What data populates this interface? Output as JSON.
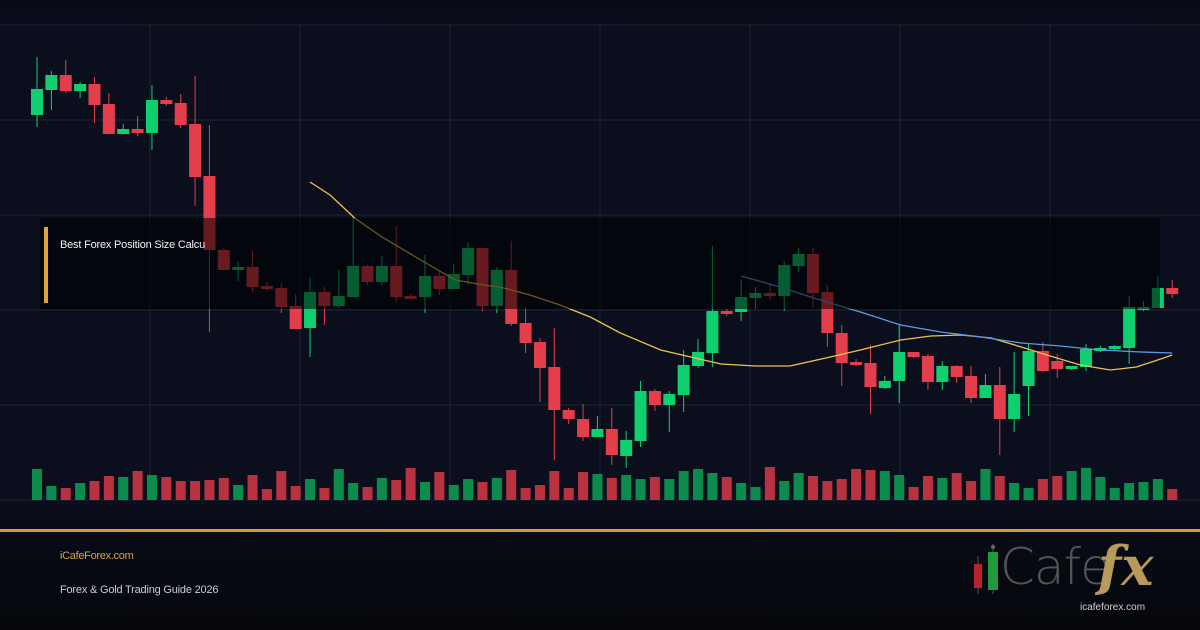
{
  "banner": {
    "title": "Best Forex Position Size Calcu",
    "site": "iCafeForex.com",
    "subtitle": "Forex & Gold Trading Guide 2026",
    "logo_text": "iCafefx",
    "logo_url": "icafeforex.com"
  },
  "colors": {
    "bull": "#0fcf6e",
    "bear": "#e43d4b",
    "bull_volume": "#0c8c4c",
    "bear_volume": "#b8323f",
    "ma_fast": "#f2c14e",
    "ma_slow": "#5b9be6",
    "accent": "#d49a3a",
    "grid": "#1e2436"
  },
  "chart_data": {
    "type": "candlestick",
    "grid": true,
    "candles": [
      [
        385,
        443,
        373,
        411
      ],
      [
        410,
        429,
        390,
        425
      ],
      [
        425,
        440,
        407,
        409
      ],
      [
        409,
        418,
        402,
        416
      ],
      [
        416,
        423,
        377,
        395
      ],
      [
        396,
        407,
        366,
        366
      ],
      [
        366,
        376,
        366,
        371
      ],
      [
        371,
        384,
        364,
        367
      ],
      [
        367,
        415,
        350,
        400
      ],
      [
        400,
        403,
        394,
        396
      ],
      [
        397,
        406,
        372,
        375
      ],
      [
        376,
        424,
        294,
        323
      ],
      [
        324,
        375,
        168,
        250
      ],
      [
        250,
        252,
        230,
        230
      ],
      [
        230,
        238,
        219,
        233
      ],
      [
        233,
        249,
        208,
        213
      ],
      [
        214,
        218,
        209,
        211
      ],
      [
        212,
        217,
        187,
        193
      ],
      [
        194,
        206,
        171,
        171
      ],
      [
        172,
        222,
        143,
        208
      ],
      [
        208,
        213,
        175,
        194
      ],
      [
        194,
        230,
        192,
        204
      ],
      [
        203,
        283,
        203,
        234
      ],
      [
        234,
        235,
        215,
        218
      ],
      [
        218,
        244,
        215,
        234
      ],
      [
        234,
        274,
        198,
        203
      ],
      [
        204,
        206,
        201,
        201
      ],
      [
        203,
        245,
        187,
        224
      ],
      [
        224,
        229,
        205,
        211
      ],
      [
        211,
        236,
        211,
        226
      ],
      [
        225,
        258,
        215,
        252
      ],
      [
        252,
        252,
        189,
        194
      ],
      [
        194,
        233,
        187,
        230
      ],
      [
        230,
        259,
        174,
        176
      ],
      [
        177,
        193,
        147,
        157
      ],
      [
        158,
        162,
        98,
        132
      ],
      [
        133,
        172,
        40,
        90
      ],
      [
        90,
        92,
        76,
        81
      ],
      [
        81,
        96,
        59,
        63
      ],
      [
        63,
        84,
        63,
        71
      ],
      [
        71,
        92,
        35,
        45
      ],
      [
        44,
        69,
        32,
        60
      ],
      [
        59,
        119,
        53,
        109
      ],
      [
        109,
        111,
        89,
        95
      ],
      [
        95,
        109,
        68,
        106
      ],
      [
        105,
        150,
        88,
        135
      ],
      [
        134,
        161,
        132,
        148
      ],
      [
        147,
        254,
        133,
        189
      ],
      [
        189,
        191,
        184,
        186
      ],
      [
        188,
        220,
        179,
        203
      ],
      [
        202,
        213,
        191,
        207
      ],
      [
        207,
        216,
        200,
        204
      ],
      [
        204,
        239,
        189,
        235
      ],
      [
        234,
        252,
        228,
        246
      ],
      [
        246,
        252,
        193,
        207
      ],
      [
        208,
        215,
        153,
        167
      ],
      [
        167,
        175,
        114,
        137
      ],
      [
        138,
        141,
        134,
        135
      ],
      [
        137,
        155,
        86,
        113
      ],
      [
        112,
        124,
        111,
        119
      ],
      [
        119,
        175,
        97,
        148
      ],
      [
        148,
        148,
        142,
        143
      ],
      [
        144,
        146,
        110,
        118
      ],
      [
        118,
        139,
        110,
        134
      ],
      [
        134,
        135,
        117,
        123
      ],
      [
        124,
        134,
        97,
        102
      ],
      [
        102,
        126,
        102,
        115
      ],
      [
        115,
        133,
        45,
        81
      ],
      [
        81,
        148,
        68,
        106
      ],
      [
        114,
        157,
        84,
        149
      ],
      [
        149,
        158,
        128,
        129
      ],
      [
        139,
        146,
        122,
        131
      ],
      [
        131,
        134,
        130,
        134
      ],
      [
        133,
        156,
        129,
        151
      ],
      [
        149,
        154,
        148,
        152
      ],
      [
        151,
        155,
        150,
        154
      ],
      [
        152,
        204,
        136,
        193
      ],
      [
        190,
        199,
        189,
        193
      ],
      [
        192,
        224,
        192,
        212
      ],
      [
        212,
        220,
        202,
        206
      ]
    ],
    "volumes": [
      31,
      14,
      12,
      17,
      19,
      24,
      23,
      29,
      25,
      23,
      19,
      19,
      20,
      22,
      15,
      25,
      11,
      29,
      14,
      21,
      12,
      31,
      17,
      13,
      22,
      20,
      32,
      18,
      28,
      15,
      21,
      18,
      22,
      30,
      12,
      15,
      29,
      12,
      28,
      26,
      22,
      25,
      21,
      23,
      21,
      29,
      31,
      27,
      23,
      17,
      13,
      33,
      19,
      27,
      24,
      19,
      21,
      31,
      30,
      29,
      25,
      13,
      24,
      22,
      27,
      19,
      31,
      24,
      17,
      12,
      21,
      24,
      29,
      32,
      23,
      12,
      17,
      18,
      21,
      11
    ],
    "volume_dir": [
      "g",
      "g",
      "r",
      "g",
      "r",
      "r",
      "g",
      "r",
      "g",
      "r",
      "r",
      "r",
      "r",
      "r",
      "g",
      "r",
      "r",
      "r",
      "r",
      "g",
      "r",
      "g",
      "g",
      "r",
      "g",
      "r",
      "r",
      "g",
      "r",
      "g",
      "g",
      "r",
      "g",
      "r",
      "r",
      "r",
      "r",
      "r",
      "r",
      "g",
      "r",
      "g",
      "g",
      "r",
      "g",
      "g",
      "g",
      "g",
      "r",
      "g",
      "g",
      "r",
      "g",
      "g",
      "r",
      "r",
      "r",
      "r",
      "r",
      "g",
      "g",
      "r",
      "r",
      "g",
      "r",
      "r",
      "g",
      "r",
      "g",
      "g",
      "r",
      "r",
      "g",
      "g",
      "g",
      "g",
      "g",
      "g",
      "g",
      "r"
    ],
    "ma_fast": [
      [
        19,
        318
      ],
      [
        20.4,
        305
      ],
      [
        22.1,
        282
      ],
      [
        23.9,
        264
      ],
      [
        26.7,
        240
      ],
      [
        29.1,
        220
      ],
      [
        31.1,
        215
      ],
      [
        32.2,
        213
      ],
      [
        34.3,
        205
      ],
      [
        36.4,
        195
      ],
      [
        38.5,
        183
      ],
      [
        40.6,
        167
      ],
      [
        43.4,
        150
      ],
      [
        45.5,
        143
      ],
      [
        47.6,
        136
      ],
      [
        50,
        134
      ],
      [
        52.4,
        134
      ],
      [
        55.2,
        143
      ],
      [
        57.3,
        150
      ],
      [
        60.1,
        160
      ],
      [
        62.2,
        164
      ],
      [
        64.3,
        165
      ],
      [
        66.4,
        162
      ],
      [
        68.5,
        153
      ],
      [
        70.5,
        144
      ],
      [
        72.6,
        135
      ],
      [
        74.7,
        130
      ],
      [
        76.5,
        133
      ],
      [
        78.2,
        141
      ],
      [
        79,
        145
      ]
    ],
    "ma_slow": [
      [
        49,
        224
      ],
      [
        51.7,
        213
      ],
      [
        54.5,
        200
      ],
      [
        57.3,
        188
      ],
      [
        60.1,
        175
      ],
      [
        62.9,
        168
      ],
      [
        65.7,
        163
      ],
      [
        68.5,
        157
      ],
      [
        71.2,
        154
      ],
      [
        74,
        150
      ],
      [
        76.8,
        148
      ],
      [
        79,
        147
      ]
    ]
  }
}
